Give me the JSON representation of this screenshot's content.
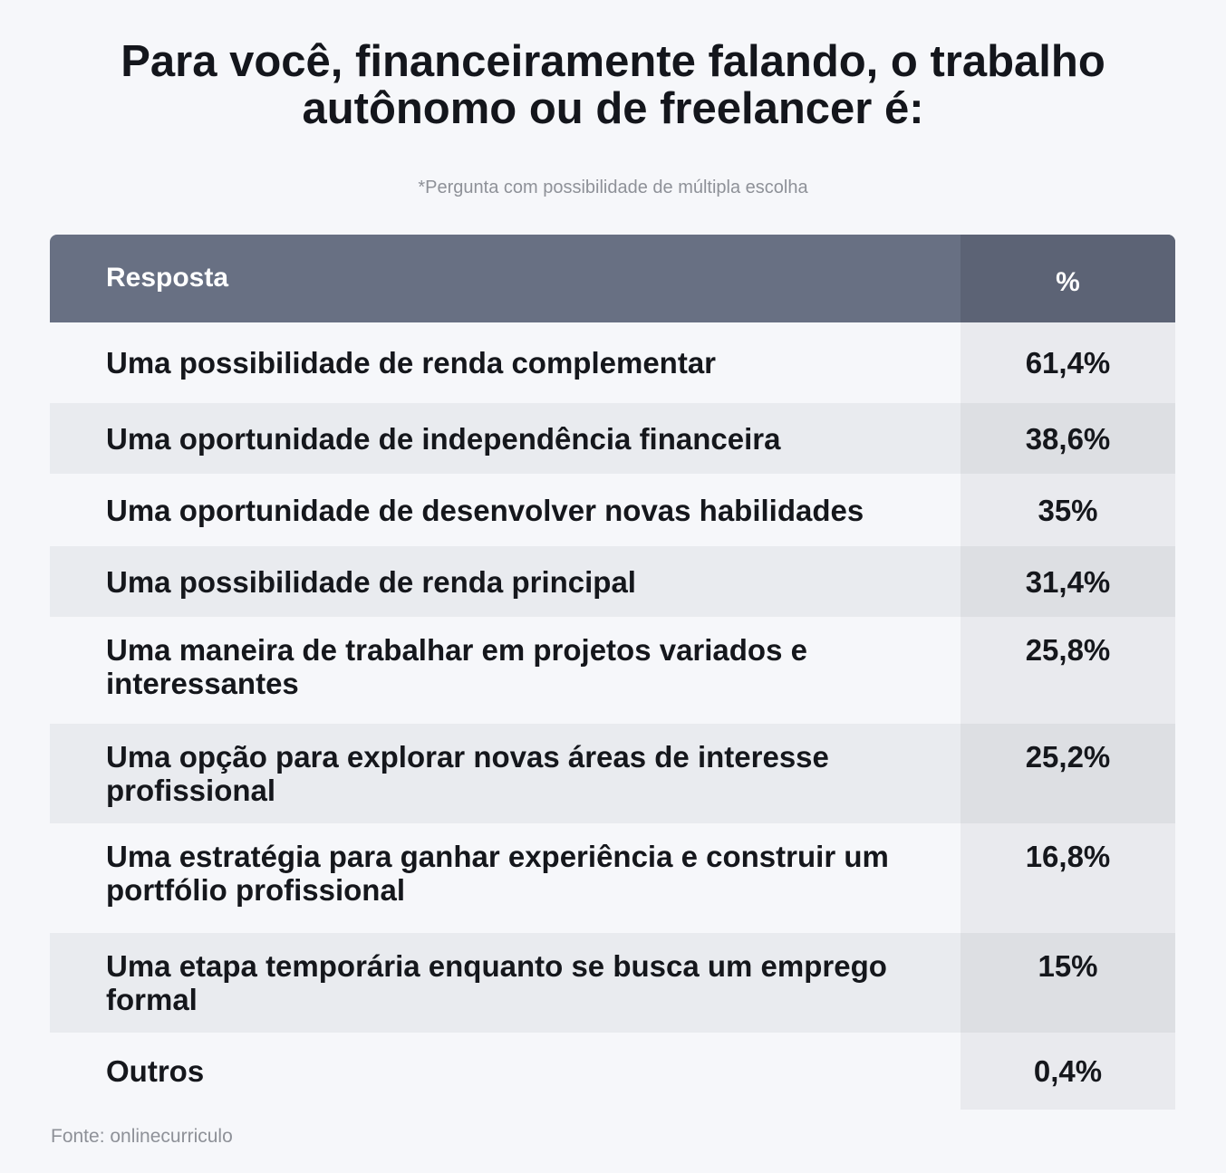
{
  "title": "Para você, financeiramente falando, o trabalho autônomo ou de freelancer é:",
  "subtitle": "*Pergunta com possibilidade de múltipla escolha",
  "table": {
    "headers": [
      "Resposta",
      "%"
    ],
    "rows": [
      {
        "answer": "Uma possibilidade de renda complementar",
        "percent": "61,4%"
      },
      {
        "answer": "Uma oportunidade de independência financeira",
        "percent": "38,6%"
      },
      {
        "answer": "Uma oportunidade de desenvolver novas habilidades",
        "percent": "35%"
      },
      {
        "answer": "Uma possibilidade de renda principal",
        "percent": "31,4%"
      },
      {
        "answer": "Uma maneira de trabalhar em projetos variados e interessantes",
        "percent": "25,8%"
      },
      {
        "answer": "Uma opção para explorar novas áreas de interesse profissional",
        "percent": "25,2%"
      },
      {
        "answer": "Uma estratégia para ganhar experiência e construir um portfólio profissional",
        "percent": "16,8%"
      },
      {
        "answer": "Uma etapa temporária enquanto se busca um emprego formal",
        "percent": "15%"
      },
      {
        "answer": "Outros",
        "percent": "0,4%"
      }
    ]
  },
  "source": "Fonte: onlinecurriculo",
  "colors": {
    "header_bg": "#687083",
    "header_pct_bg": "#5c6375",
    "row_alt_bg": "#e9ebef",
    "page_bg": "#f6f7fa"
  }
}
